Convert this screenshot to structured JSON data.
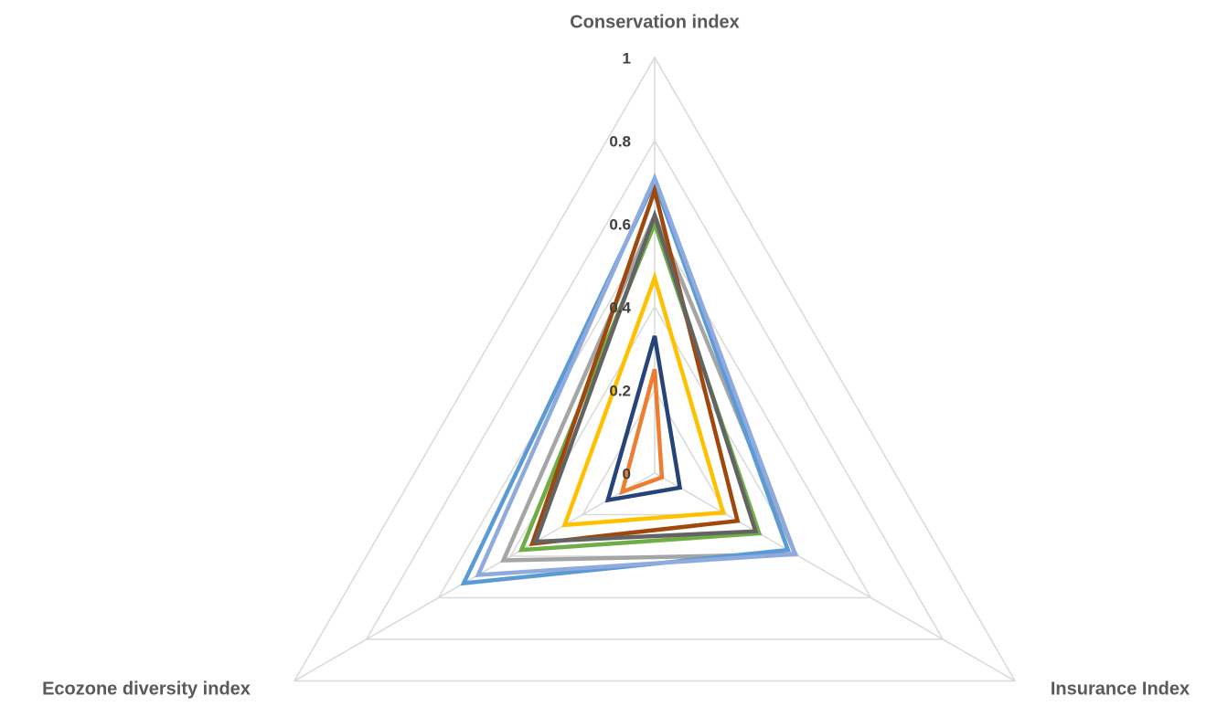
{
  "chart_data": {
    "type": "radar",
    "categories": [
      "Conservation index",
      "Insurance Index",
      "Ecozone diversity index"
    ],
    "ylim": [
      0,
      1
    ],
    "yticks": [
      0,
      0.2,
      0.4,
      0.6,
      0.8,
      1
    ],
    "grid": true,
    "series": [
      {
        "color": "#264478",
        "values": [
          0.33,
          0.07,
          0.13
        ]
      },
      {
        "color": "#ed7d31",
        "values": [
          0.25,
          0.02,
          0.09
        ]
      },
      {
        "color": "#a5a5a5",
        "values": [
          0.62,
          0.39,
          0.42
        ]
      },
      {
        "color": "#ffc000",
        "values": [
          0.47,
          0.19,
          0.25
        ]
      },
      {
        "color": "#5b9bd5",
        "values": [
          0.7,
          0.37,
          0.53
        ]
      },
      {
        "color": "#70ad47",
        "values": [
          0.6,
          0.29,
          0.37
        ]
      },
      {
        "color": "#9e480e",
        "values": [
          0.68,
          0.23,
          0.34
        ]
      },
      {
        "color": "#636363",
        "values": [
          0.62,
          0.28,
          0.33
        ]
      },
      {
        "color": "#8faadc",
        "values": [
          0.71,
          0.39,
          0.49
        ]
      }
    ]
  }
}
